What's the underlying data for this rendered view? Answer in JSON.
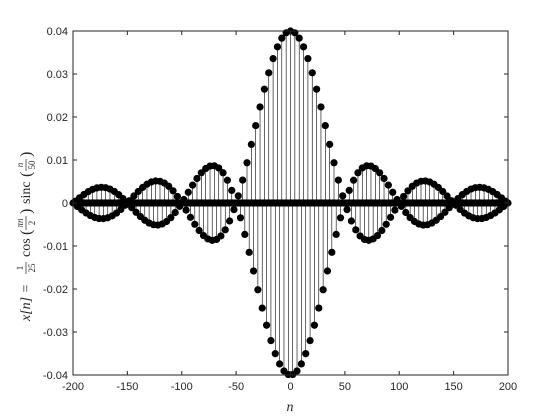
{
  "chart_data": {
    "type": "stem",
    "title": "",
    "xlabel": "n",
    "ylabel": "x[n] = (1/25) cos(πn/2) sinc(n/50)",
    "ylabel_parts": {
      "lhs": "x[n] =",
      "frac_num": "1",
      "frac_den": "25",
      "cos": "cos",
      "cos_num": "πn",
      "cos_den": "2",
      "sinc": "sinc",
      "sinc_num": "n",
      "sinc_den": "50"
    },
    "formula": {
      "amplitude": 0.04,
      "cos_frequency": 0.5,
      "sinc_denominator": 50
    },
    "n_range": [
      -200,
      200
    ],
    "n_step": 1,
    "xlim": [
      -200,
      200
    ],
    "ylim": [
      -0.04,
      0.04
    ],
    "xticks": [
      -200,
      -150,
      -100,
      -50,
      0,
      50,
      100,
      150,
      200
    ],
    "xtick_labels": [
      "-200",
      "-150",
      "-100",
      "-50",
      "0",
      "50",
      "100",
      "150",
      "200"
    ],
    "yticks": [
      -0.04,
      -0.03,
      -0.02,
      -0.01,
      0,
      0.01,
      0.02,
      0.03,
      0.04
    ],
    "ytick_labels": [
      "-0.04",
      "-0.03",
      "-0.02",
      "-0.01",
      "0",
      "0.01",
      "0.02",
      "0.03",
      "0.04"
    ],
    "grid": false,
    "legend": "none",
    "marker": "filled-circle",
    "color": "#000000"
  }
}
